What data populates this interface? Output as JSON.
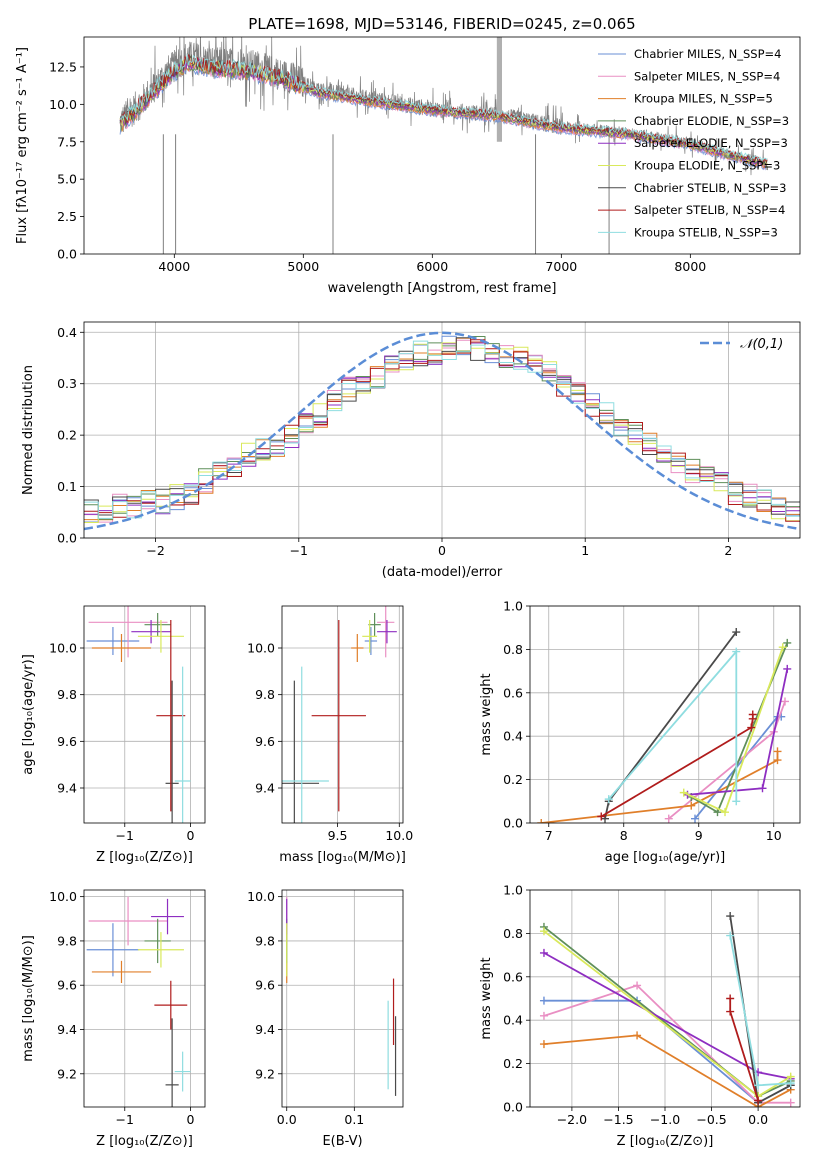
{
  "chart_data": [
    {
      "id": "spectrum",
      "type": "line",
      "title": "PLATE=1698, MJD=53146, FIBERID=0245, z=0.065",
      "xlabel": "wavelength [Angstrom, rest frame]",
      "ylabel": "Flux [fλ10⁻¹⁷ erg cm⁻² s⁻¹ A⁻¹]",
      "xlim": [
        3300,
        8850
      ],
      "ylim": [
        0,
        14.5
      ],
      "xticks": [
        4000,
        5000,
        6000,
        7000,
        8000
      ],
      "xtick_labels": [
        "4000",
        "5000",
        "6000",
        "7000",
        "8000"
      ],
      "yticks": [
        0,
        2.5,
        5,
        7.5,
        10,
        12.5
      ],
      "ytick_labels": [
        "0.0",
        "2.5",
        "5.0",
        "7.5",
        "10.0",
        "12.5"
      ],
      "grid": false,
      "legend_position": "top-right",
      "data_color": "#7f7f7f",
      "observed_approx": {
        "x": [
          3580,
          3750,
          3950,
          4100,
          4300,
          4600,
          4900,
          5100,
          5500,
          6000,
          6500,
          7000,
          7500,
          8000,
          8300,
          8600
        ],
        "y": [
          8.8,
          10.2,
          12.2,
          13.2,
          12.8,
          12.6,
          11.8,
          11.0,
          10.4,
          9.7,
          9.3,
          8.5,
          8.1,
          7.4,
          6.6,
          6.0
        ]
      },
      "model_approx": {
        "x": [
          3580,
          3750,
          3950,
          4100,
          4300,
          4600,
          4900,
          5100,
          5500,
          6000,
          6500,
          7000,
          7500,
          8000,
          8300,
          8600
        ],
        "y": [
          8.6,
          10.0,
          11.8,
          12.8,
          12.4,
          12.2,
          11.5,
          10.8,
          10.2,
          9.6,
          9.2,
          8.4,
          8.0,
          7.3,
          6.6,
          6.0
        ]
      },
      "series": [
        {
          "name": "Chabrier MILES, N_SSP=4",
          "color": "#6a8fd6"
        },
        {
          "name": "Salpeter MILES, N_SSP=4",
          "color": "#e98fc3"
        },
        {
          "name": "Kroupa MILES, N_SSP=5",
          "color": "#e07f2a"
        },
        {
          "name": "Chabrier ELODIE, N_SSP=3",
          "color": "#5f8f5a"
        },
        {
          "name": "Salpeter ELODIE, N_SSP=3",
          "color": "#8e2ec1"
        },
        {
          "name": "Kroupa ELODIE, N_SSP=3",
          "color": "#d9e95b"
        },
        {
          "name": "Chabrier STELIB, N_SSP=3",
          "color": "#4a4a4a"
        },
        {
          "name": "Salpeter STELIB, N_SSP=4",
          "color": "#b01c1c"
        },
        {
          "name": "Kroupa STELIB, N_SSP=3",
          "color": "#8fdde0"
        }
      ]
    },
    {
      "id": "residual_hist",
      "type": "histogram",
      "xlabel": "(data-model)/error",
      "ylabel": "Normed distribution",
      "xlim": [
        -2.5,
        2.5
      ],
      "ylim": [
        0,
        0.42
      ],
      "xticks": [
        -2,
        -1,
        0,
        1,
        2
      ],
      "xtick_labels": [
        "−2",
        "−1",
        "0",
        "1",
        "2"
      ],
      "yticks": [
        0,
        0.1,
        0.2,
        0.3,
        0.4
      ],
      "ytick_labels": [
        "0.0",
        "0.1",
        "0.2",
        "0.3",
        "0.4"
      ],
      "grid": true,
      "legend_position": "top-right",
      "reference_curve": {
        "name": "𝒩(0,1)",
        "mean": 0,
        "sigma": 1,
        "color": "#5b8dd6"
      },
      "bin_width": 0.1,
      "envelope": [
        0.05,
        0.05,
        0.06,
        0.06,
        0.07,
        0.07,
        0.08,
        0.09,
        0.11,
        0.13,
        0.14,
        0.16,
        0.17,
        0.18,
        0.2,
        0.22,
        0.24,
        0.27,
        0.29,
        0.3,
        0.31,
        0.33,
        0.35,
        0.36,
        0.36,
        0.37,
        0.37,
        0.37,
        0.36,
        0.35,
        0.35,
        0.34,
        0.33,
        0.3,
        0.28,
        0.26,
        0.24,
        0.22,
        0.2,
        0.18,
        0.17,
        0.15,
        0.13,
        0.12,
        0.11,
        0.09,
        0.08,
        0.07,
        0.06,
        0.05
      ]
    },
    {
      "id": "age_vs_Z",
      "type": "errorbar",
      "xlabel": "Z [log₁₀(Z/Z⊙)]",
      "ylabel": "age  [log₁₀(age/yr)]",
      "xlim": [
        -1.62,
        0.22
      ],
      "ylim": [
        9.25,
        10.18
      ],
      "xticks": [
        -1,
        0
      ],
      "xtick_labels": [
        "−1",
        "0"
      ],
      "yticks": [
        9.4,
        9.6,
        9.8,
        10.0
      ],
      "ytick_labels": [
        "9.4",
        "9.6",
        "9.8",
        "10.0"
      ],
      "grid": true,
      "points": [
        {
          "color": "#6a8fd6",
          "x": -1.18,
          "xerr": 0.4,
          "y": 10.03,
          "yerr": 0.06
        },
        {
          "color": "#e98fc3",
          "x": -0.95,
          "xerr": 0.6,
          "y": 10.11,
          "yerr": 0.15
        },
        {
          "color": "#e07f2a",
          "x": -1.05,
          "xerr": 0.45,
          "y": 10.0,
          "yerr": 0.06
        },
        {
          "color": "#5f8f5a",
          "x": -0.5,
          "xerr": 0.2,
          "y": 10.1,
          "yerr": 0.05
        },
        {
          "color": "#8e2ec1",
          "x": -0.6,
          "xerr": 0.3,
          "y": 10.07,
          "yerr": 0.05
        },
        {
          "color": "#d9e95b",
          "x": -0.45,
          "xerr": 0.35,
          "y": 10.05,
          "yerr": 0.07
        },
        {
          "color": "#4a4a4a",
          "x": -0.28,
          "xerr": 0.1,
          "y": 9.42,
          "yerr": 0.44
        },
        {
          "color": "#b01c1c",
          "x": -0.3,
          "xerr": 0.22,
          "y": 9.71,
          "yerr": 0.41
        },
        {
          "color": "#8fdde0",
          "x": -0.12,
          "xerr": 0.12,
          "y": 9.43,
          "yerr": 0.49
        }
      ]
    },
    {
      "id": "age_vs_mass",
      "type": "errorbar",
      "xlabel": "mass [log₁₀(M/M⊙)]",
      "ylabel": "",
      "xlim": [
        9.05,
        10.03
      ],
      "ylim": [
        9.25,
        10.18
      ],
      "xticks": [
        9.5,
        10.0
      ],
      "xtick_labels": [
        "9.5",
        "10.0"
      ],
      "yticks": [
        9.4,
        9.6,
        9.8,
        10.0
      ],
      "ytick_labels": [
        "9.4",
        "9.6",
        "9.8",
        "10.0"
      ],
      "grid": true,
      "points": [
        {
          "color": "#6a8fd6",
          "x": 9.77,
          "xerr": 0.05,
          "y": 10.03,
          "yerr": 0.06
        },
        {
          "color": "#e98fc3",
          "x": 9.89,
          "xerr": 0.07,
          "y": 10.11,
          "yerr": 0.15
        },
        {
          "color": "#e07f2a",
          "x": 9.66,
          "xerr": 0.05,
          "y": 10.0,
          "yerr": 0.06
        },
        {
          "color": "#5f8f5a",
          "x": 9.8,
          "xerr": 0.05,
          "y": 10.1,
          "yerr": 0.05
        },
        {
          "color": "#8e2ec1",
          "x": 9.9,
          "xerr": 0.08,
          "y": 10.07,
          "yerr": 0.05
        },
        {
          "color": "#d9e95b",
          "x": 9.76,
          "xerr": 0.06,
          "y": 10.05,
          "yerr": 0.07
        },
        {
          "color": "#4a4a4a",
          "x": 9.15,
          "xerr": 0.2,
          "y": 9.42,
          "yerr": 0.44
        },
        {
          "color": "#b01c1c",
          "x": 9.51,
          "xerr": 0.22,
          "y": 9.71,
          "yerr": 0.41
        },
        {
          "color": "#8fdde0",
          "x": 9.21,
          "xerr": 0.22,
          "y": 9.43,
          "yerr": 0.49
        }
      ]
    },
    {
      "id": "massweight_vs_age",
      "type": "line",
      "xlabel": "age  [log₁₀(age/yr)]",
      "ylabel": "mass weight",
      "xlim": [
        6.75,
        10.35
      ],
      "ylim": [
        0,
        1.0
      ],
      "xticks": [
        7,
        8,
        9,
        10
      ],
      "xtick_labels": [
        "7",
        "8",
        "9",
        "10"
      ],
      "yticks": [
        0,
        0.2,
        0.4,
        0.6,
        0.8,
        1.0
      ],
      "ytick_labels": [
        "0.0",
        "0.2",
        "0.4",
        "0.6",
        "0.8",
        "1.0"
      ],
      "grid": true,
      "series": [
        {
          "color": "#6a8fd6",
          "x": [
            8.95,
            10.05,
            10.1
          ],
          "y": [
            0.02,
            0.49,
            0.49
          ]
        },
        {
          "color": "#e98fc3",
          "x": [
            8.6,
            10.0,
            10.15
          ],
          "y": [
            0.02,
            0.42,
            0.56
          ]
        },
        {
          "color": "#e07f2a",
          "x": [
            6.9,
            8.9,
            10.05,
            10.05
          ],
          "y": [
            0.0,
            0.08,
            0.29,
            0.33
          ]
        },
        {
          "color": "#5f8f5a",
          "x": [
            8.9,
            9.25,
            10.18
          ],
          "y": [
            0.12,
            0.05,
            0.83
          ]
        },
        {
          "color": "#8e2ec1",
          "x": [
            8.85,
            9.85,
            10.18
          ],
          "y": [
            0.13,
            0.16,
            0.71
          ]
        },
        {
          "color": "#d9e95b",
          "x": [
            8.8,
            9.35,
            10.12
          ],
          "y": [
            0.14,
            0.05,
            0.81
          ]
        },
        {
          "color": "#4a4a4a",
          "x": [
            7.75,
            7.8,
            9.5
          ],
          "y": [
            0.02,
            0.1,
            0.88
          ]
        },
        {
          "color": "#b01c1c",
          "x": [
            7.7,
            9.7,
            9.72,
            9.72
          ],
          "y": [
            0.03,
            0.44,
            0.48,
            0.5
          ]
        },
        {
          "color": "#8fdde0",
          "x": [
            7.8,
            9.5,
            9.5
          ],
          "y": [
            0.11,
            0.79,
            0.1
          ]
        }
      ]
    },
    {
      "id": "mass_vs_Z",
      "type": "errorbar",
      "xlabel": "Z [log₁₀(Z/Z⊙)]",
      "ylabel": "mass [log₁₀(M/M⊙)]",
      "xlim": [
        -1.62,
        0.22
      ],
      "ylim": [
        9.05,
        10.03
      ],
      "xticks": [
        -1,
        0
      ],
      "xtick_labels": [
        "−1",
        "0"
      ],
      "yticks": [
        9.2,
        9.4,
        9.6,
        9.8,
        10.0
      ],
      "ytick_labels": [
        "9.2",
        "9.4",
        "9.6",
        "9.8",
        "10.0"
      ],
      "grid": true,
      "points": [
        {
          "color": "#6a8fd6",
          "x": -1.18,
          "xerr": 0.4,
          "y": 9.76,
          "yerr": 0.12
        },
        {
          "color": "#e98fc3",
          "x": -0.95,
          "xerr": 0.6,
          "y": 9.89,
          "yerr": 0.11
        },
        {
          "color": "#e07f2a",
          "x": -1.05,
          "xerr": 0.45,
          "y": 9.66,
          "yerr": 0.05
        },
        {
          "color": "#5f8f5a",
          "x": -0.5,
          "xerr": 0.2,
          "y": 9.8,
          "yerr": 0.1
        },
        {
          "color": "#8e2ec1",
          "x": -0.35,
          "xerr": 0.25,
          "y": 9.91,
          "yerr": 0.08
        },
        {
          "color": "#d9e95b",
          "x": -0.45,
          "xerr": 0.35,
          "y": 9.76,
          "yerr": 0.08
        },
        {
          "color": "#4a4a4a",
          "x": -0.28,
          "xerr": 0.1,
          "y": 9.15,
          "yerr": 0.3
        },
        {
          "color": "#b01c1c",
          "x": -0.3,
          "xerr": 0.25,
          "y": 9.51,
          "yerr": 0.11
        },
        {
          "color": "#8fdde0",
          "x": -0.12,
          "xerr": 0.12,
          "y": 9.21,
          "yerr": 0.09
        }
      ]
    },
    {
      "id": "mass_vs_ebv",
      "type": "errorbar",
      "xlabel": "E(B-V)",
      "ylabel": "",
      "xlim": [
        -0.007,
        0.172
      ],
      "ylim": [
        9.05,
        10.03
      ],
      "xticks": [
        0.0,
        0.1
      ],
      "xtick_labels": [
        "0.0",
        "0.1"
      ],
      "yticks": [
        9.2,
        9.4,
        9.6,
        9.8,
        10.0
      ],
      "ytick_labels": [
        "9.2",
        "9.4",
        "9.6",
        "9.8",
        "10.0"
      ],
      "grid": true,
      "points": [
        {
          "color": "#6a8fd6",
          "x": 0.0,
          "xerr": 0,
          "y": 9.76,
          "yerr": 0.12
        },
        {
          "color": "#e98fc3",
          "x": 0.0,
          "xerr": 0,
          "y": 9.89,
          "yerr": 0.11
        },
        {
          "color": "#e07f2a",
          "x": 0.0,
          "xerr": 0,
          "y": 9.66,
          "yerr": 0.05
        },
        {
          "color": "#5f8f5a",
          "x": 0.0,
          "xerr": 0,
          "y": 9.8,
          "yerr": 0.1
        },
        {
          "color": "#8e2ec1",
          "x": 0.0,
          "xerr": 0,
          "y": 9.91,
          "yerr": 0.08
        },
        {
          "color": "#d9e95b",
          "x": 0.0,
          "xerr": 0,
          "y": 9.76,
          "yerr": 0.12
        },
        {
          "color": "#4a4a4a",
          "x": 0.161,
          "xerr": 0,
          "y": 9.28,
          "yerr": 0.18
        },
        {
          "color": "#b01c1c",
          "x": 0.158,
          "xerr": 0,
          "y": 9.48,
          "yerr": 0.15
        },
        {
          "color": "#8fdde0",
          "x": 0.15,
          "xerr": 0,
          "y": 9.33,
          "yerr": 0.2
        }
      ]
    },
    {
      "id": "massweight_vs_Z",
      "type": "line",
      "xlabel": "Z [log₁₀(Z/Z⊙)]",
      "ylabel": "mass weight",
      "xlim": [
        -2.45,
        0.45
      ],
      "ylim": [
        0,
        1.0
      ],
      "xticks": [
        -2.0,
        -1.5,
        -1.0,
        -0.5,
        0.0
      ],
      "xtick_labels": [
        "−2.0",
        "−1.5",
        "−1.0",
        "−0.5",
        "0.0"
      ],
      "yticks": [
        0,
        0.2,
        0.4,
        0.6,
        0.8,
        1.0
      ],
      "ytick_labels": [
        "0.0",
        "0.2",
        "0.4",
        "0.6",
        "0.8",
        "1.0"
      ],
      "grid": true,
      "series": [
        {
          "color": "#6a8fd6",
          "x": [
            -2.3,
            -1.3,
            0.0,
            0.35
          ],
          "y": [
            0.49,
            0.49,
            0.02,
            0.1
          ]
        },
        {
          "color": "#e98fc3",
          "x": [
            -2.3,
            -1.3,
            0.0,
            0.35
          ],
          "y": [
            0.42,
            0.56,
            0.02,
            0.02
          ]
        },
        {
          "color": "#e07f2a",
          "x": [
            -2.3,
            -1.3,
            0.0,
            0.35
          ],
          "y": [
            0.29,
            0.33,
            0.0,
            0.08
          ]
        },
        {
          "color": "#5f8f5a",
          "x": [
            -2.3,
            0.0,
            0.35
          ],
          "y": [
            0.83,
            0.05,
            0.12
          ]
        },
        {
          "color": "#8e2ec1",
          "x": [
            -2.3,
            0.0,
            0.35
          ],
          "y": [
            0.71,
            0.16,
            0.13
          ]
        },
        {
          "color": "#d9e95b",
          "x": [
            -2.3,
            0.0,
            0.35
          ],
          "y": [
            0.81,
            0.05,
            0.14
          ]
        },
        {
          "color": "#4a4a4a",
          "x": [
            -0.3,
            0.0,
            0.35
          ],
          "y": [
            0.88,
            0.02,
            0.1
          ]
        },
        {
          "color": "#b01c1c",
          "x": [
            -0.3,
            -0.3,
            0.0
          ],
          "y": [
            0.5,
            0.44,
            0.03
          ]
        },
        {
          "color": "#8fdde0",
          "x": [
            -0.3,
            0.0,
            0.35
          ],
          "y": [
            0.79,
            0.1,
            0.11
          ]
        }
      ]
    }
  ]
}
